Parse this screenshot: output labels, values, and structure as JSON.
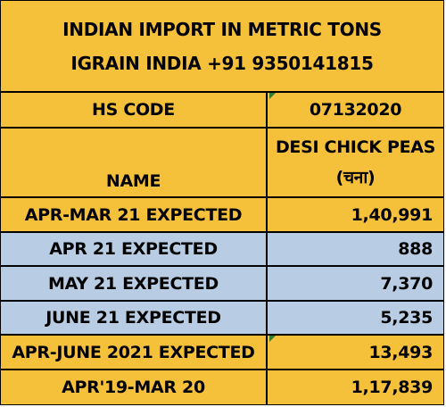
{
  "title": {
    "line1": "INDIAN IMPORT IN METRIC TONS",
    "line2": "IGRAIN INDIA +91 9350141815"
  },
  "hs_code": {
    "label": "HS CODE",
    "value": "07132020"
  },
  "name": {
    "label": "NAME",
    "value_line1": "DESI CHICK PEAS",
    "value_line2": "(चना)"
  },
  "rows": [
    {
      "label": "APR-MAR 21 EXPECTED",
      "value": "1,40,991"
    },
    {
      "label": "APR 21 EXPECTED",
      "value": "888"
    },
    {
      "label": "MAY 21 EXPECTED",
      "value": "7,370"
    },
    {
      "label": "JUNE 21 EXPECTED",
      "value": "5,235"
    },
    {
      "label": "APR-JUNE 2021 EXPECTED",
      "value": "13,493"
    },
    {
      "label": "APR'19-MAR 20",
      "value": "1,17,839"
    }
  ],
  "colors": {
    "orange": "#F5C13A",
    "blue": "#B8CCE4",
    "marker": "#2E7D32"
  }
}
